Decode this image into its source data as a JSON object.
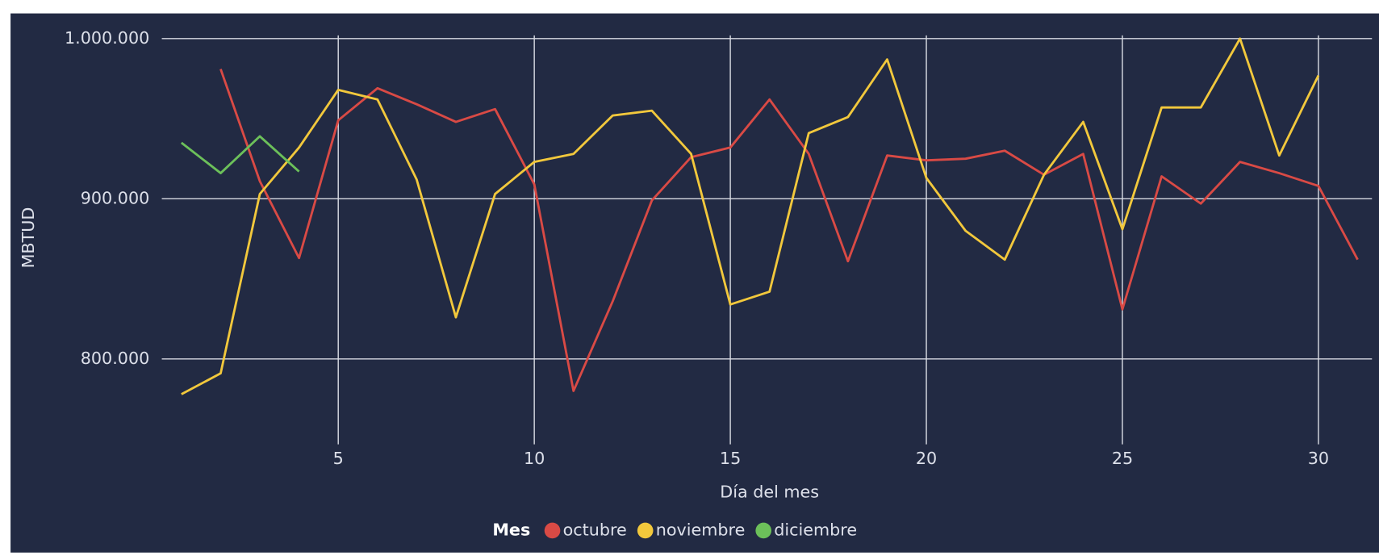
{
  "chart_data": {
    "type": "line",
    "x_label": "Día del mes",
    "y_label": "MBTUD",
    "legend_title": "Mes",
    "x": [
      1,
      2,
      3,
      4,
      5,
      6,
      7,
      8,
      9,
      10,
      11,
      12,
      13,
      14,
      15,
      16,
      17,
      18,
      19,
      20,
      21,
      22,
      23,
      24,
      25,
      26,
      27,
      28,
      29,
      30,
      31
    ],
    "series": [
      {
        "name": "octubre",
        "color": "#d94a45",
        "values": [
          null,
          981000,
          911000,
          863000,
          949000,
          969000,
          959000,
          948000,
          956000,
          909000,
          780000,
          836000,
          899000,
          926000,
          932000,
          962000,
          928000,
          861000,
          927000,
          924000,
          925000,
          930000,
          915000,
          928000,
          831000,
          914000,
          897000,
          923000,
          916000,
          908000,
          862000
        ]
      },
      {
        "name": "noviembre",
        "color": "#f2c83c",
        "values": [
          778000,
          791000,
          903000,
          932000,
          968000,
          962000,
          912000,
          826000,
          903000,
          923000,
          928000,
          952000,
          955000,
          928000,
          834000,
          842000,
          941000,
          951000,
          987000,
          913000,
          880000,
          862000,
          915000,
          948000,
          881000,
          957000,
          957000,
          1000000,
          927000,
          977000,
          null
        ]
      },
      {
        "name": "diciembre",
        "color": "#6cc05a",
        "values": [
          935000,
          916000,
          939000,
          917000,
          null,
          null,
          null,
          null,
          null,
          null,
          null,
          null,
          null,
          null,
          null,
          null,
          null,
          null,
          null,
          null,
          null,
          null,
          null,
          null,
          null,
          null,
          null,
          null,
          null,
          null,
          null
        ]
      }
    ],
    "xlim": [
      0.5,
      31.5
    ],
    "xticks": [
      5,
      10,
      15,
      20,
      25,
      30
    ],
    "ylim": [
      745000,
      1002000
    ],
    "yticks": [
      {
        "value": 800000,
        "label": "800.000"
      },
      {
        "value": 900000,
        "label": "900.000"
      },
      {
        "value": 1000000,
        "label": "1.000.000"
      }
    ],
    "grid": true
  }
}
